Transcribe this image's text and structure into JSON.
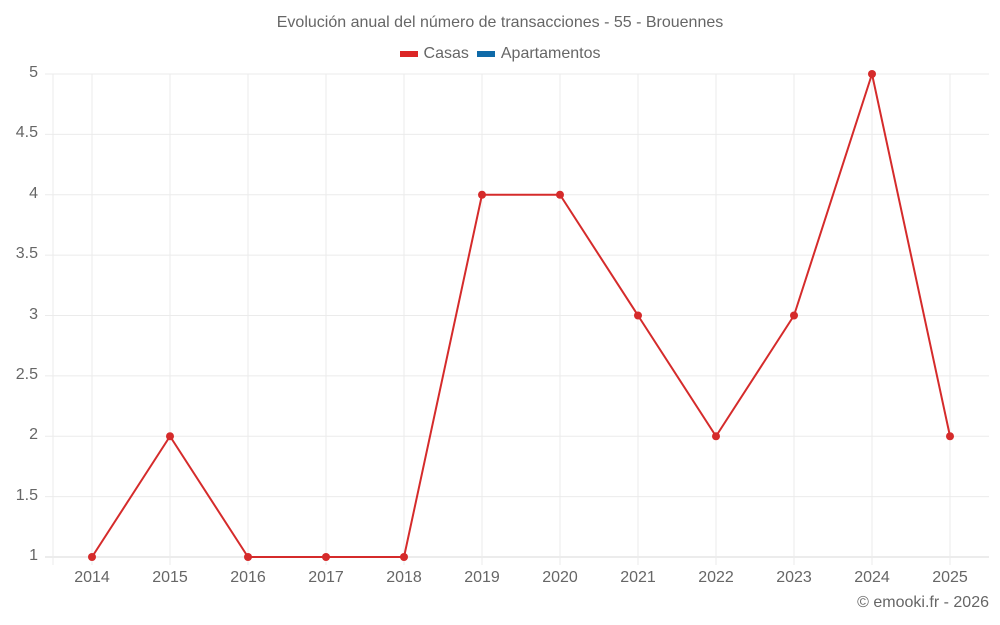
{
  "title": "Evolución anual del número de transacciones - 55 - Brouennes",
  "legend": [
    {
      "label": "Casas",
      "color": "#dc2626"
    },
    {
      "label": "Apartamentos",
      "color": "#0f6aa8"
    }
  ],
  "credits": "© emooki.fr - 2026",
  "colors": {
    "line": "#d52b2b",
    "grid": "#ebebeb",
    "axis": "#d9d9d9",
    "text": "#666666"
  },
  "chart_data": {
    "type": "line",
    "title": "Evolución anual del número de transacciones - 55 - Brouennes",
    "xlabel": "",
    "ylabel": "",
    "categories": [
      "2014",
      "2015",
      "2016",
      "2017",
      "2018",
      "2019",
      "2020",
      "2021",
      "2022",
      "2023",
      "2024",
      "2025"
    ],
    "series": [
      {
        "name": "Casas",
        "color": "#d52b2b",
        "values": [
          1,
          2,
          1,
          1,
          1,
          4,
          4,
          3,
          2,
          3,
          5,
          2
        ]
      },
      {
        "name": "Apartamentos",
        "color": "#0f6aa8",
        "values": []
      }
    ],
    "ylim": [
      1,
      5
    ],
    "yticks": [
      "1",
      "1.5",
      "2",
      "2.5",
      "3",
      "3.5",
      "4",
      "4.5",
      "5"
    ],
    "grid": true,
    "legend_position": "top"
  }
}
